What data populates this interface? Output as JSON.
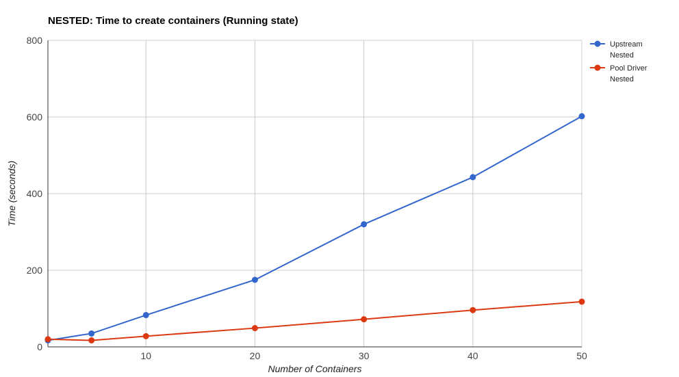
{
  "chart_data": {
    "type": "line",
    "title": "NESTED: Time to create containers (Running state)",
    "xlabel": "Number of Containers",
    "ylabel": "Time (seconds)",
    "x": [
      1,
      5,
      10,
      20,
      30,
      40,
      50
    ],
    "xlim": [
      1,
      50
    ],
    "ylim": [
      0,
      800
    ],
    "xticks": [
      10,
      20,
      30,
      40,
      50
    ],
    "yticks": [
      0,
      200,
      400,
      600,
      800
    ],
    "grid": true,
    "legend_position": "right",
    "series": [
      {
        "name": "Upstream Nested",
        "legend_lines": [
          "Upstream",
          "Nested"
        ],
        "color": "#3366cc",
        "values": [
          17,
          35,
          83,
          175,
          320,
          443,
          602
        ]
      },
      {
        "name": "Pool Driver Nested",
        "legend_lines": [
          "Pool Driver",
          "Nested"
        ],
        "color": "#dc3912",
        "values": [
          20,
          17,
          28,
          49,
          72,
          96,
          118
        ]
      }
    ]
  }
}
